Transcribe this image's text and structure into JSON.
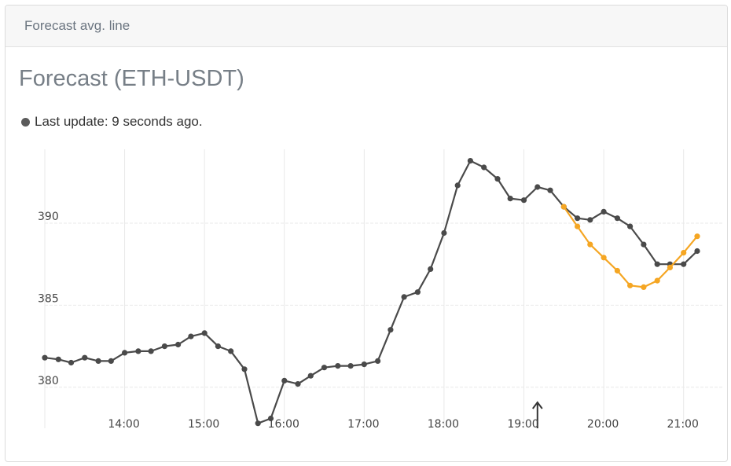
{
  "panel": {
    "header_title": "Forecast avg. line",
    "status_text": "Last update: 9 seconds ago."
  },
  "colors": {
    "actual": "#4a4a4a",
    "forecast": "#f5a623",
    "grid": "#e9e9e9",
    "status_dot": "#5b5b5b"
  },
  "chart_data": {
    "type": "line",
    "title": "Forecast (ETH-USDT)",
    "xlabel": "",
    "ylabel": "",
    "x_unit": "hours",
    "xlim": [
      13.0,
      21.2
    ],
    "ylim": [
      377.5,
      394.5
    ],
    "x_ticks": [
      {
        "value": 14,
        "label": "14:00"
      },
      {
        "value": 15,
        "label": "15:00"
      },
      {
        "value": 16,
        "label": "16:00"
      },
      {
        "value": 17,
        "label": "17:00"
      },
      {
        "value": 18,
        "label": "18:00"
      },
      {
        "value": 19,
        "label": "19:00"
      },
      {
        "value": 20,
        "label": "20:00"
      },
      {
        "value": 21,
        "label": "21:00"
      }
    ],
    "y_ticks": [
      {
        "value": 380,
        "label": "380"
      },
      {
        "value": 385,
        "label": "385"
      },
      {
        "value": 390,
        "label": "390"
      }
    ],
    "grid": true,
    "marker_x": 19.17,
    "series": [
      {
        "name": "",
        "role": "actual",
        "x": [
          13.0,
          13.17,
          13.33,
          13.5,
          13.67,
          13.83,
          14.0,
          14.17,
          14.33,
          14.5,
          14.67,
          14.83,
          15.0,
          15.17,
          15.33,
          15.5,
          15.67,
          15.83,
          16.0,
          16.17,
          16.33,
          16.5,
          16.67,
          16.83,
          17.0,
          17.17,
          17.33,
          17.5,
          17.67,
          17.83,
          18.0,
          18.17,
          18.33,
          18.5,
          18.67,
          18.83,
          19.0,
          19.17,
          19.33,
          19.5,
          19.67,
          19.83,
          20.0,
          20.17,
          20.33,
          20.5,
          20.67,
          20.83,
          21.0,
          21.17
        ],
        "y": [
          381.8,
          381.7,
          381.5,
          381.8,
          381.6,
          381.6,
          382.1,
          382.2,
          382.2,
          382.5,
          382.6,
          383.1,
          383.3,
          382.5,
          382.2,
          381.1,
          377.8,
          378.1,
          380.4,
          380.2,
          380.7,
          381.2,
          381.3,
          381.3,
          381.4,
          381.6,
          383.5,
          385.5,
          385.8,
          387.2,
          389.4,
          392.3,
          393.8,
          393.4,
          392.7,
          391.5,
          391.4,
          392.2,
          392.0,
          391.0,
          390.3,
          390.2,
          390.7,
          390.3,
          389.8,
          388.7,
          387.5,
          387.5,
          387.5,
          388.3
        ]
      },
      {
        "name": "",
        "role": "forecast",
        "x": [
          19.5,
          19.67,
          19.83,
          20.0,
          20.17,
          20.33,
          20.5,
          20.67,
          20.83,
          21.0,
          21.17
        ],
        "y": [
          391.0,
          389.8,
          388.7,
          387.9,
          387.1,
          386.2,
          386.1,
          386.5,
          387.3,
          388.2,
          389.2
        ]
      }
    ]
  }
}
